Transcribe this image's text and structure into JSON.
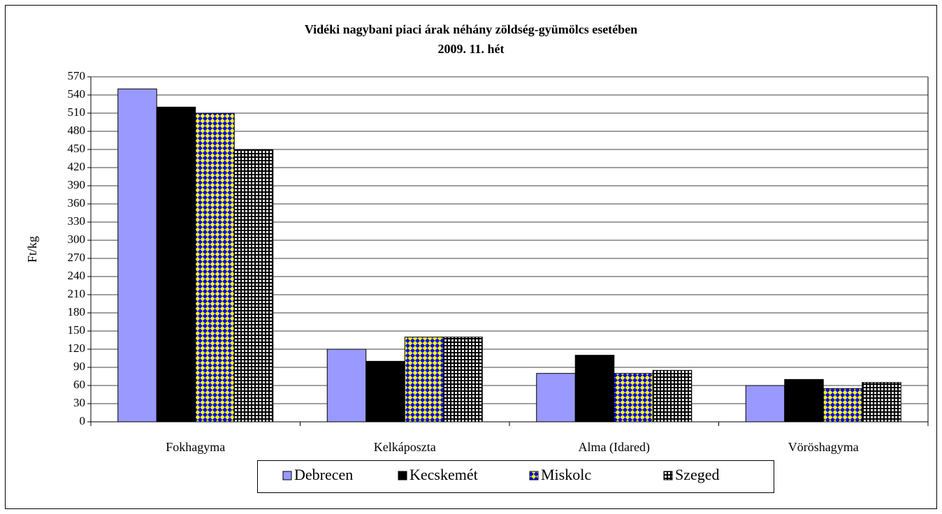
{
  "chart_data": {
    "type": "bar",
    "title": "Vidéki nagybani piaci árak néhány zöldség-gyümölcs esetében",
    "subtitle": "2009. 11. hét",
    "y_label": "Ft/kg",
    "categories": [
      "Fokhagyma",
      "Kelkáposzta",
      "Alma  (Idared)",
      "Vöröshagyma"
    ],
    "series": [
      {
        "name": "Debrecen",
        "color": "#9999ff",
        "values": [
          550,
          120,
          80,
          60
        ]
      },
      {
        "name": "Kecskemét",
        "color": "#000000",
        "values": [
          520,
          100,
          110,
          70
        ]
      },
      {
        "name": "Miskolc",
        "color": "#0000ff",
        "pattern": "diamond",
        "values": [
          510,
          140,
          80,
          55
        ]
      },
      {
        "name": "Szeged",
        "color": "#ffffff",
        "pattern": "grid",
        "values": [
          450,
          140,
          85,
          65
        ]
      }
    ],
    "ylim": [
      0,
      570
    ],
    "yticks": [
      0,
      30,
      60,
      90,
      120,
      150,
      180,
      210,
      240,
      270,
      300,
      330,
      360,
      390,
      420,
      450,
      480,
      510,
      540,
      570
    ],
    "grid": true,
    "legend": "bottom"
  }
}
